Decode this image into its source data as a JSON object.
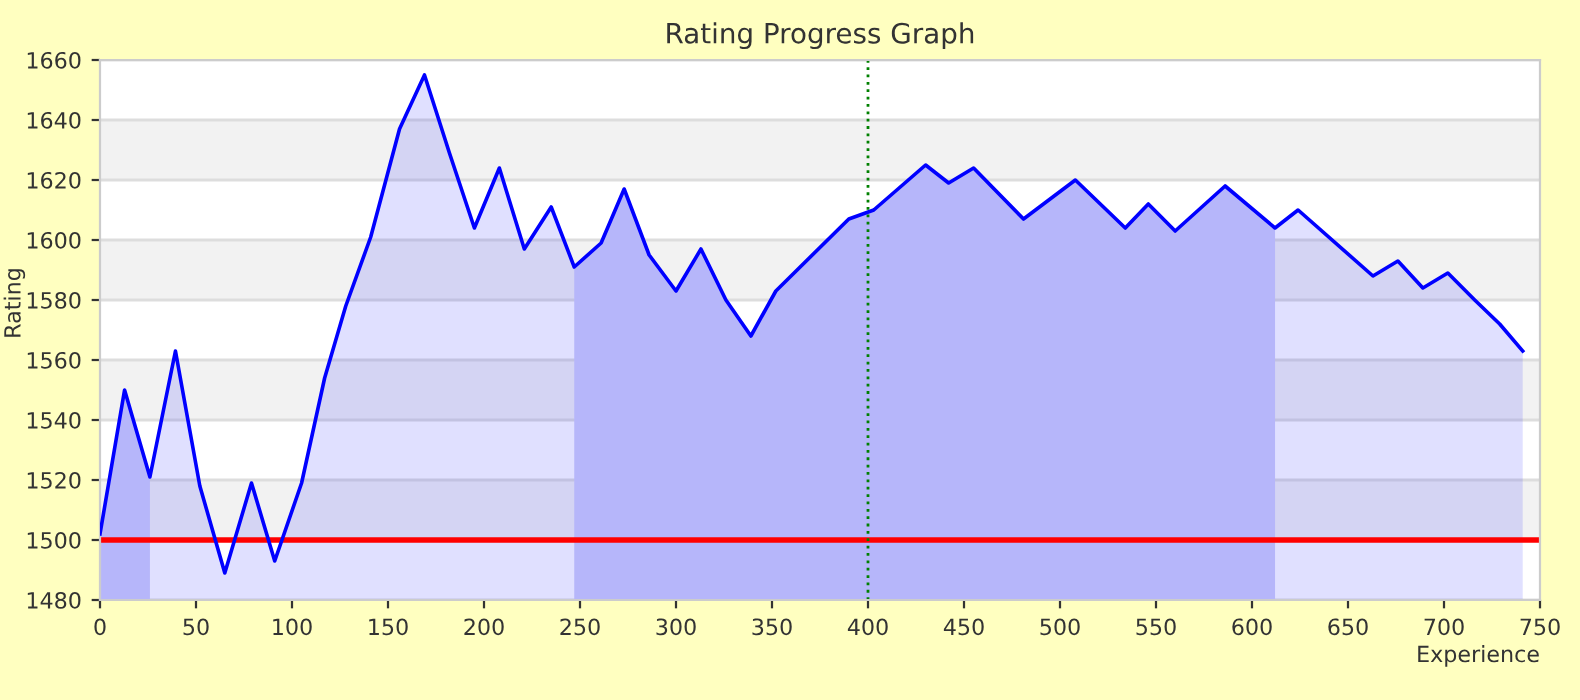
{
  "chart_data": {
    "type": "area",
    "title": "Rating Progress Graph",
    "xlabel": "Experience",
    "ylabel": "Rating",
    "series": [
      {
        "color": "#0000ff",
        "x": [
          0,
          12.8,
          26,
          39.3,
          52,
          65,
          78.9,
          91,
          105,
          117,
          128,
          141,
          156,
          169,
          182,
          195,
          208,
          221,
          235,
          247,
          261,
          273,
          286,
          300,
          313,
          326,
          339,
          352,
          390,
          403,
          430,
          442,
          455,
          481,
          508,
          534,
          546,
          560,
          586,
          612,
          624,
          663,
          676,
          689,
          702,
          716,
          729,
          741
        ],
        "values": [
          1502,
          1550,
          1521,
          1563,
          1518,
          1489,
          1519,
          1493,
          1519,
          1554,
          1578,
          1601,
          1637,
          1655,
          1629,
          1604,
          1624,
          1597,
          1611,
          1591,
          1599,
          1617,
          1595,
          1583,
          1597,
          1580,
          1568,
          1583,
          1607,
          1610,
          1625,
          1619,
          1624,
          1607,
          1620,
          1604,
          1612,
          1603,
          1618,
          1604,
          1610,
          1588,
          1593,
          1584,
          1589,
          1580,
          1572,
          1563
        ]
      }
    ],
    "bands": [
      {
        "axis": "x",
        "from": 0,
        "to": 26,
        "color": "#d0d0fa"
      },
      {
        "axis": "x",
        "from": 247,
        "to": 612,
        "color": "#d0d0fa"
      }
    ],
    "ref_lines": [
      {
        "axis": "y",
        "value": 1500,
        "color": "#ff0000",
        "line_style": "solid"
      },
      {
        "axis": "x",
        "value": 400,
        "color": "#008000",
        "line_style": "dotted"
      }
    ],
    "xlim": [
      0,
      750
    ],
    "xticks": [
      0,
      50,
      100,
      150,
      200,
      250,
      300,
      350,
      400,
      450,
      500,
      550,
      600,
      650,
      700,
      750
    ],
    "ylim": [
      1480,
      1660
    ],
    "yticks": [
      1480,
      1500,
      1520,
      1540,
      1560,
      1580,
      1600,
      1620,
      1640,
      1660
    ],
    "grid": "y"
  }
}
